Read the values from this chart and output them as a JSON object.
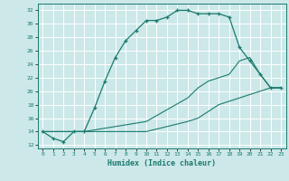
{
  "xlabel": "Humidex (Indice chaleur)",
  "bg_color": "#cce8e8",
  "grid_color": "#ffffff",
  "line_color": "#1a7a6e",
  "xlim": [
    -0.5,
    23.5
  ],
  "ylim": [
    11.5,
    33
  ],
  "xticks": [
    0,
    1,
    2,
    3,
    4,
    5,
    6,
    7,
    8,
    9,
    10,
    11,
    12,
    13,
    14,
    15,
    16,
    17,
    18,
    19,
    20,
    21,
    22,
    23
  ],
  "yticks": [
    12,
    14,
    16,
    18,
    20,
    22,
    24,
    26,
    28,
    30,
    32
  ],
  "line1_x": [
    0,
    1,
    2,
    3,
    4,
    5,
    6,
    7,
    8,
    9,
    10,
    11,
    12,
    13,
    14,
    15,
    16,
    17,
    18,
    19,
    20,
    21,
    22,
    23
  ],
  "line1_y": [
    14,
    13,
    12.5,
    14,
    14,
    17.5,
    21.5,
    25,
    27.5,
    29,
    30.5,
    30.5,
    31,
    32,
    32,
    31.5,
    31.5,
    31.5,
    31,
    26.5,
    24.5,
    22.5,
    20.5,
    20.5
  ],
  "line2_x": [
    0,
    3,
    4,
    10,
    14,
    15,
    16,
    17,
    18,
    19,
    20,
    21,
    22,
    23
  ],
  "line2_y": [
    14,
    14,
    14,
    15.5,
    19,
    20.5,
    21.5,
    22,
    22.5,
    24.5,
    25,
    22.5,
    20.5,
    20.5
  ],
  "line3_x": [
    0,
    3,
    4,
    10,
    14,
    15,
    16,
    17,
    18,
    19,
    20,
    21,
    22,
    23
  ],
  "line3_y": [
    14,
    14,
    14,
    14,
    15.5,
    16,
    17,
    18,
    18.5,
    19,
    19.5,
    20,
    20.5,
    20.5
  ]
}
